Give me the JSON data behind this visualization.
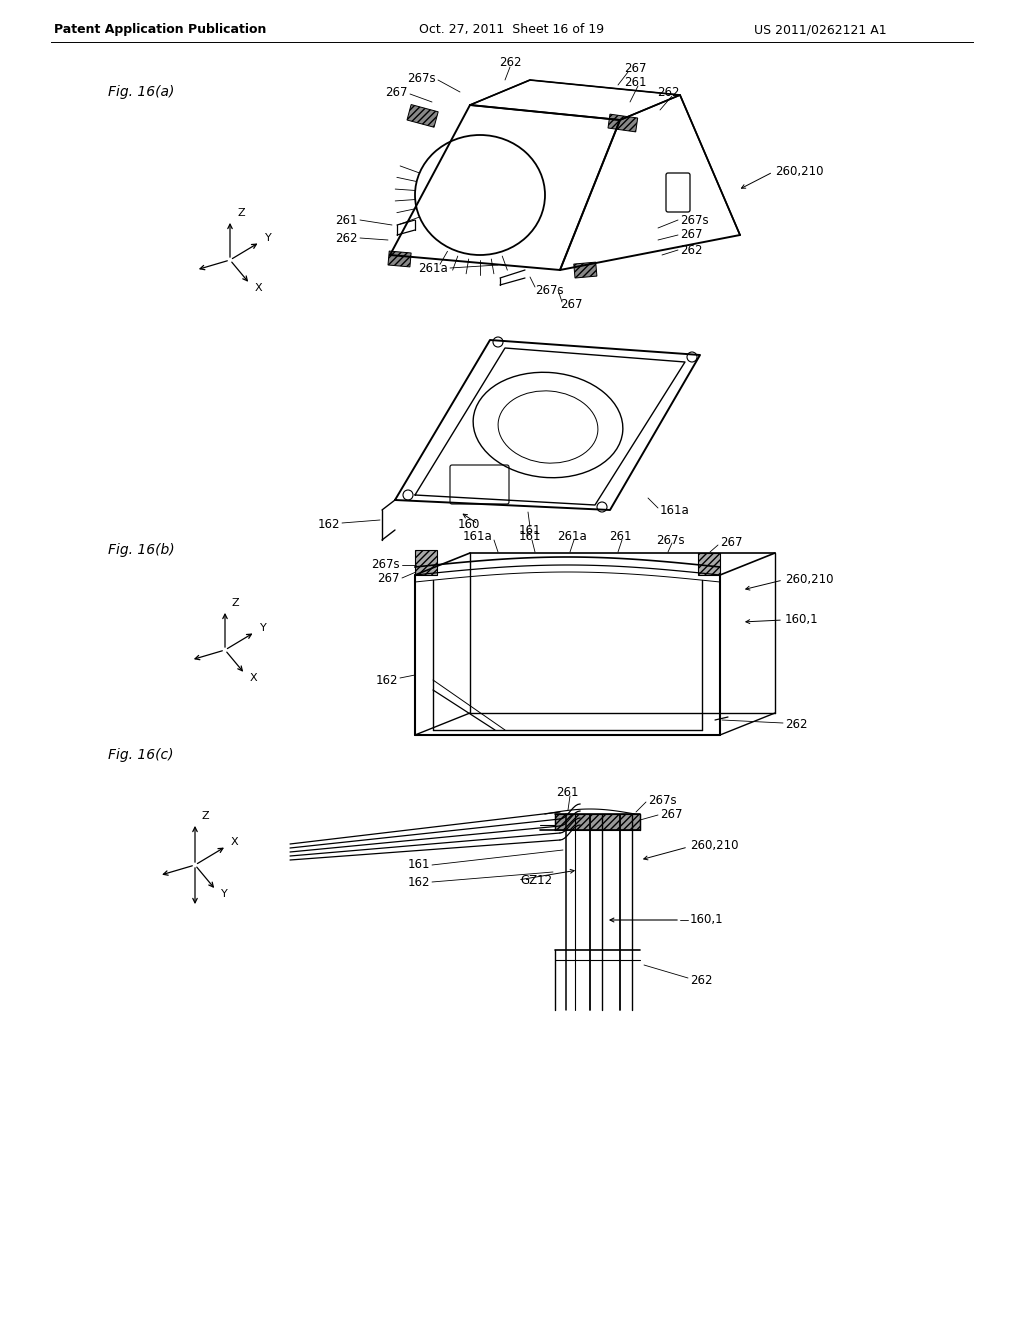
{
  "header_left": "Patent Application Publication",
  "header_mid": "Oct. 27, 2011  Sheet 16 of 19",
  "header_right": "US 2011/0262121 A1",
  "fig_a_label": "Fig. 16(a)",
  "fig_b_label": "Fig. 16(b)",
  "fig_c_label": "Fig. 16(c)",
  "background_color": "#ffffff",
  "line_color": "#000000",
  "text_color": "#000000",
  "font_size_header": 9,
  "font_size_label": 10,
  "font_size_ref": 8.5
}
